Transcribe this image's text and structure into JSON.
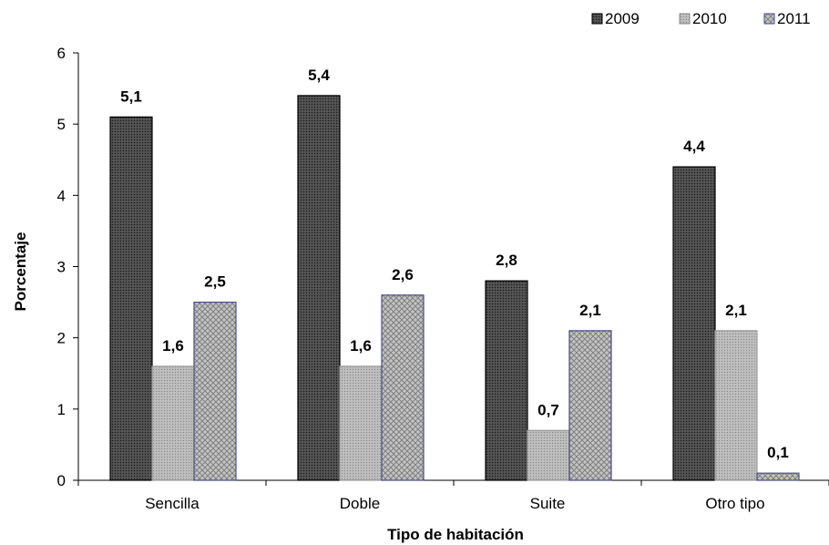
{
  "chart_data": {
    "type": "bar",
    "categories": [
      "Sencilla",
      "Doble",
      "Suite",
      "Otro tipo"
    ],
    "series": [
      {
        "name": "2009",
        "values": [
          5.1,
          5.4,
          2.8,
          4.4
        ],
        "labels": [
          "5,1",
          "5,4",
          "2,8",
          "4,4"
        ],
        "color": "#2f2f2f",
        "pattern": "dark-dotted"
      },
      {
        "name": "2010",
        "values": [
          1.6,
          1.6,
          0.7,
          2.1
        ],
        "labels": [
          "1,6",
          "1,6",
          "0,7",
          "2,1"
        ],
        "color": "#a6a6a6",
        "pattern": "light-dotted"
      },
      {
        "name": "2011",
        "values": [
          2.5,
          2.6,
          2.1,
          0.1
        ],
        "labels": [
          "2,5",
          "2,6",
          "2,1",
          "0,1"
        ],
        "color": "#b3b3b3",
        "pattern": "crosshatch",
        "border_color": "#4b4b8a"
      }
    ],
    "xlabel": "Tipo de habitación",
    "ylabel": "Porcentaje",
    "ylim": [
      0,
      6
    ],
    "yticks": [
      0,
      1,
      2,
      3,
      4,
      5,
      6
    ],
    "grid": false,
    "legend_position": "top-right"
  }
}
